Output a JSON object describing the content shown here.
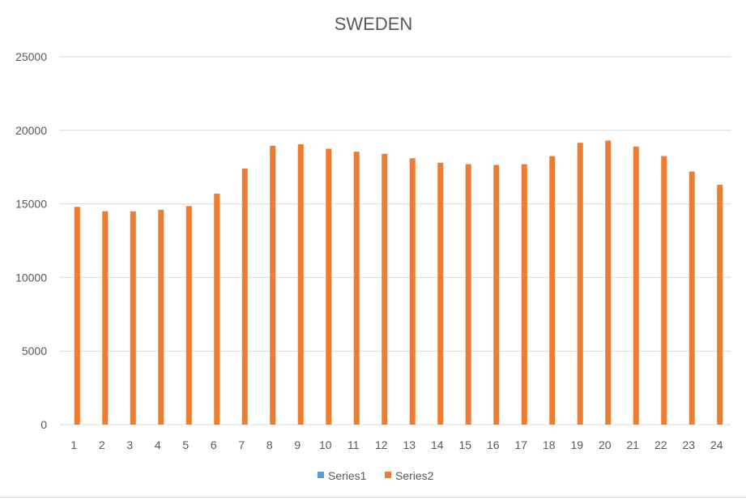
{
  "chart_data": {
    "type": "bar",
    "title": "SWEDEN",
    "xlabel": "",
    "ylabel": "",
    "categories": [
      "1",
      "2",
      "3",
      "4",
      "5",
      "6",
      "7",
      "8",
      "9",
      "10",
      "11",
      "12",
      "13",
      "14",
      "15",
      "16",
      "17",
      "18",
      "19",
      "20",
      "21",
      "22",
      "23",
      "24"
    ],
    "series": [
      {
        "name": "Series1",
        "color": "#5B9BD5",
        "values": [
          0,
          0,
          0,
          0,
          0,
          0,
          0,
          0,
          0,
          0,
          0,
          0,
          0,
          0,
          0,
          0,
          0,
          0,
          0,
          0,
          0,
          0,
          0,
          0
        ]
      },
      {
        "name": "Series2",
        "color": "#ED7D31",
        "values": [
          14800,
          14500,
          14500,
          14600,
          14850,
          15700,
          17400,
          18950,
          19050,
          18750,
          18550,
          18400,
          18100,
          17800,
          17700,
          17650,
          17700,
          18250,
          19150,
          19300,
          18900,
          18250,
          17200,
          16300
        ]
      }
    ],
    "y_ticks": [
      "0",
      "5000",
      "10000",
      "15000",
      "20000",
      "25000"
    ],
    "ylim": [
      0,
      25000
    ],
    "grid": true,
    "legend_position": "bottom"
  }
}
